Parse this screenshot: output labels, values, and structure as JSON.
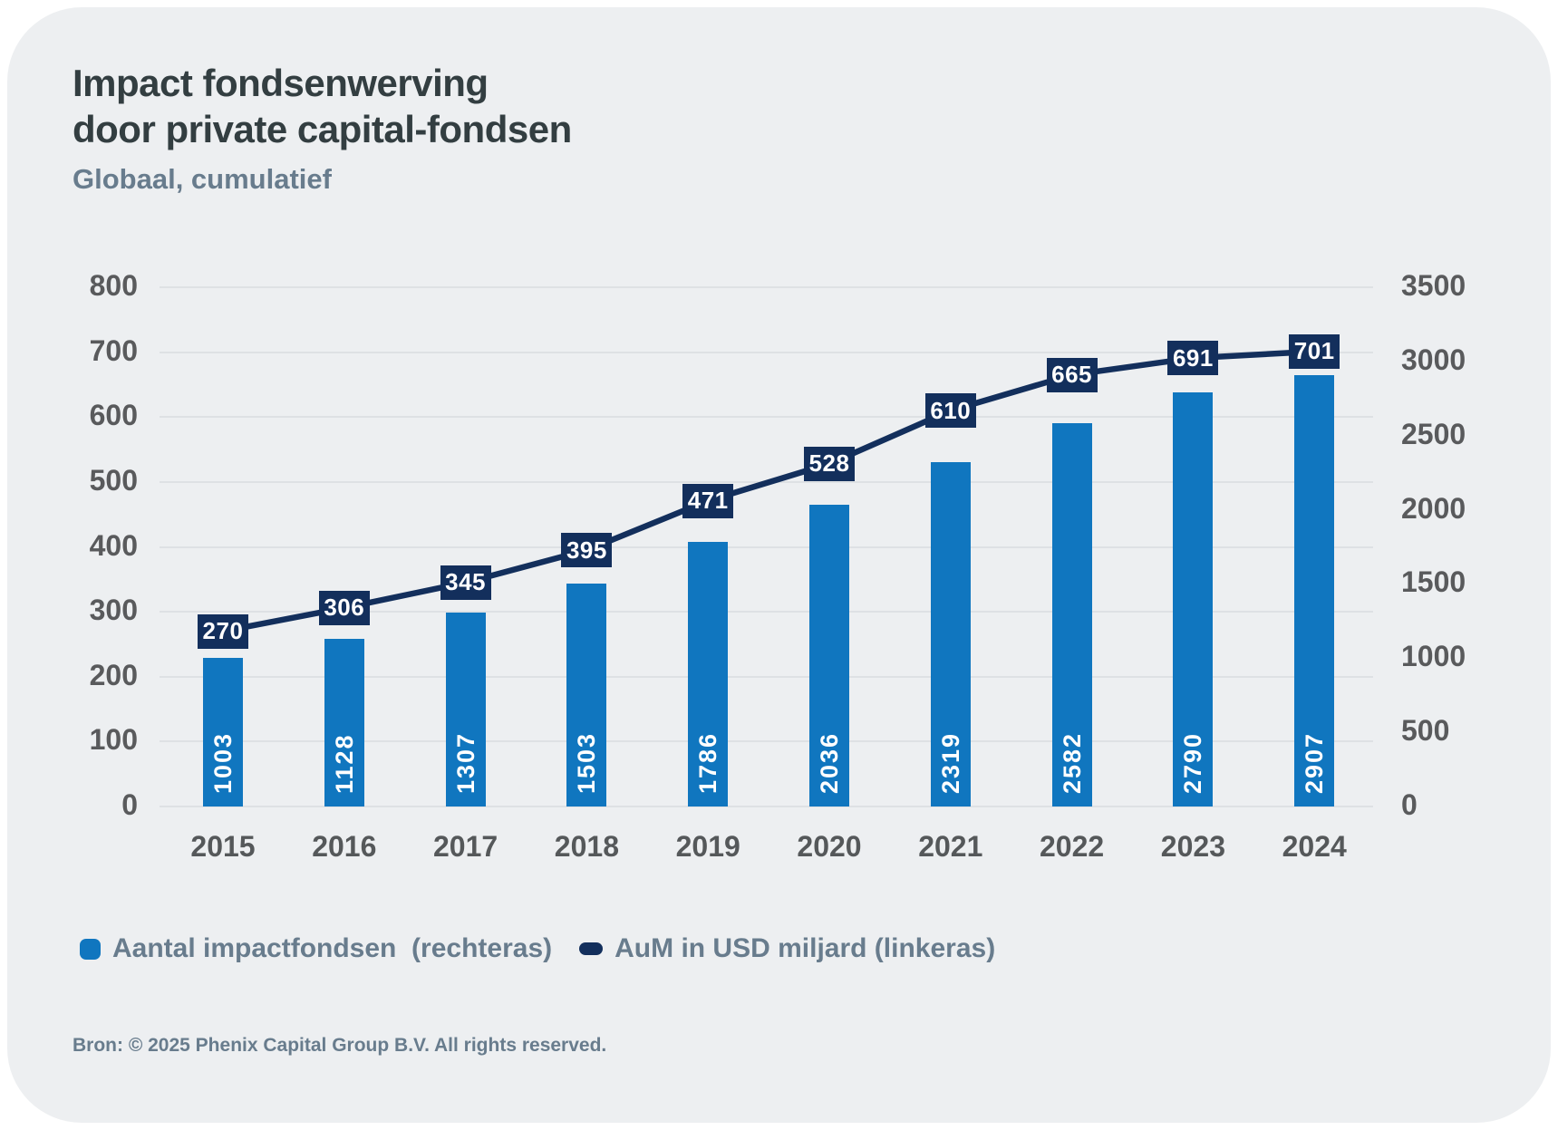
{
  "header": {
    "title": "Impact fondsenwerving\ndoor private capital-fondsen",
    "subtitle": "Globaal, cumulatief"
  },
  "legend": {
    "items": [
      {
        "label": "Aantal impactfondsen  (rechteras)",
        "swatch": "bar",
        "color": "#1076bf"
      },
      {
        "label": "AuM in USD miljard (linkeras)",
        "swatch": "line",
        "color": "#132f5c"
      }
    ]
  },
  "footer": {
    "source": "Bron: © 2025 Phenix Capital Group B.V. All rights reserved."
  },
  "colors": {
    "card_background": "#edeff1",
    "bar": "#1076bf",
    "line": "#132f5c",
    "label_box": "#132f5c",
    "axis_text": "#595a5c",
    "title_text": "#333e41",
    "muted_text": "#687c8d",
    "gridline": "#dee1e4"
  },
  "chart_data": {
    "type": "bar",
    "subtype": "bar+line combo",
    "title": "Impact fondsenwerving door private capital-fondsen",
    "subtitle": "Globaal, cumulatief",
    "categories": [
      "2015",
      "2016",
      "2017",
      "2018",
      "2019",
      "2020",
      "2021",
      "2022",
      "2023",
      "2024"
    ],
    "series": [
      {
        "name": "Aantal impactfondsen",
        "type": "bar",
        "axis": "right",
        "values": [
          1003,
          1128,
          1307,
          1503,
          1786,
          2036,
          2319,
          2582,
          2790,
          2907
        ]
      },
      {
        "name": "AuM in USD miljard",
        "type": "line",
        "axis": "left",
        "values": [
          270,
          306,
          345,
          395,
          471,
          528,
          610,
          665,
          691,
          701
        ]
      }
    ],
    "left_axis": {
      "min": 0,
      "max": 800,
      "step": 100,
      "ticks": [
        "0",
        "100",
        "200",
        "300",
        "400",
        "500",
        "600",
        "700",
        "800"
      ]
    },
    "right_axis": {
      "min": 0,
      "max": 3500,
      "step": 500,
      "ticks": [
        "0",
        "500",
        "1000",
        "1500",
        "2000",
        "2500",
        "3000",
        "3500"
      ]
    },
    "grid": true,
    "legend_position": "bottom",
    "value_labels": {
      "bar": "rotated inside bar, white",
      "line": "boxed above point, navy"
    }
  }
}
